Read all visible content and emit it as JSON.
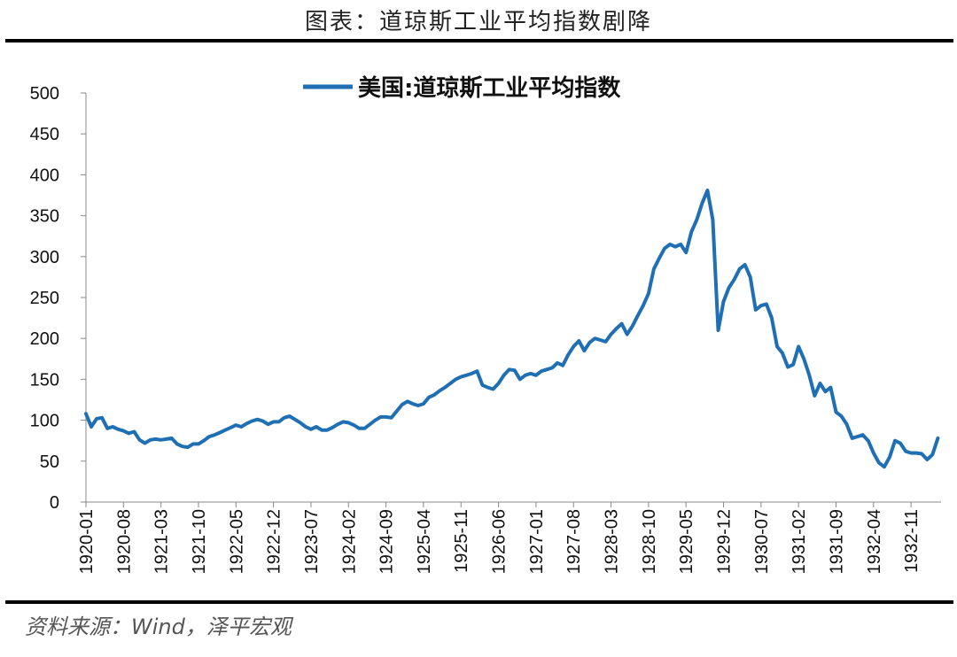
{
  "header": {
    "title": "图表：道琼斯工业平均指数剧降"
  },
  "footer": {
    "source": "资料来源：Wind，泽平宏观"
  },
  "chart_data": {
    "type": "line",
    "title": "",
    "xlabel": "",
    "ylabel": "",
    "ylim": [
      0,
      500
    ],
    "yticks": [
      0,
      50,
      100,
      150,
      200,
      250,
      300,
      350,
      400,
      450,
      500
    ],
    "xticks": [
      "1920-01",
      "1920-08",
      "1921-03",
      "1921-10",
      "1922-05",
      "1922-12",
      "1923-07",
      "1924-02",
      "1924-09",
      "1925-04",
      "1925-11",
      "1926-06",
      "1927-01",
      "1927-08",
      "1928-03",
      "1928-10",
      "1929-05",
      "1929-12",
      "1930-07",
      "1931-02",
      "1931-09",
      "1932-04",
      "1932-11"
    ],
    "grid": false,
    "legend_position": "top",
    "series": [
      {
        "name": "美国:道琼斯工业平均指数",
        "color": "#1f6fb4",
        "points": [
          [
            "1920-01",
            108
          ],
          [
            "1920-02",
            92
          ],
          [
            "1920-03",
            102
          ],
          [
            "1920-04",
            103
          ],
          [
            "1920-05",
            90
          ],
          [
            "1920-06",
            92
          ],
          [
            "1920-07",
            89
          ],
          [
            "1920-08",
            87
          ],
          [
            "1920-09",
            84
          ],
          [
            "1920-10",
            86
          ],
          [
            "1920-11",
            76
          ],
          [
            "1920-12",
            72
          ],
          [
            "1921-01",
            76
          ],
          [
            "1921-02",
            77
          ],
          [
            "1921-03",
            76
          ],
          [
            "1921-04",
            77
          ],
          [
            "1921-05",
            78
          ],
          [
            "1921-06",
            71
          ],
          [
            "1921-07",
            68
          ],
          [
            "1921-08",
            67
          ],
          [
            "1921-09",
            71
          ],
          [
            "1921-10",
            71
          ],
          [
            "1921-11",
            75
          ],
          [
            "1921-12",
            80
          ],
          [
            "1922-01",
            82
          ],
          [
            "1922-02",
            85
          ],
          [
            "1922-03",
            88
          ],
          [
            "1922-04",
            91
          ],
          [
            "1922-05",
            94
          ],
          [
            "1922-06",
            92
          ],
          [
            "1922-07",
            96
          ],
          [
            "1922-08",
            99
          ],
          [
            "1922-09",
            101
          ],
          [
            "1922-10",
            99
          ],
          [
            "1922-11",
            95
          ],
          [
            "1922-12",
            98
          ],
          [
            "1923-01",
            98
          ],
          [
            "1923-02",
            103
          ],
          [
            "1923-03",
            105
          ],
          [
            "1923-04",
            101
          ],
          [
            "1923-05",
            97
          ],
          [
            "1923-06",
            92
          ],
          [
            "1923-07",
            89
          ],
          [
            "1923-08",
            92
          ],
          [
            "1923-09",
            88
          ],
          [
            "1923-10",
            88
          ],
          [
            "1923-11",
            91
          ],
          [
            "1923-12",
            95
          ],
          [
            "1924-01",
            98
          ],
          [
            "1924-02",
            97
          ],
          [
            "1924-03",
            94
          ],
          [
            "1924-04",
            90
          ],
          [
            "1924-05",
            90
          ],
          [
            "1924-06",
            95
          ],
          [
            "1924-07",
            100
          ],
          [
            "1924-08",
            104
          ],
          [
            "1924-09",
            104
          ],
          [
            "1924-10",
            103
          ],
          [
            "1924-11",
            111
          ],
          [
            "1924-12",
            119
          ],
          [
            "1925-01",
            123
          ],
          [
            "1925-02",
            120
          ],
          [
            "1925-03",
            118
          ],
          [
            "1925-04",
            120
          ],
          [
            "1925-05",
            128
          ],
          [
            "1925-06",
            131
          ],
          [
            "1925-07",
            136
          ],
          [
            "1925-08",
            140
          ],
          [
            "1925-09",
            145
          ],
          [
            "1925-10",
            150
          ],
          [
            "1925-11",
            153
          ],
          [
            "1925-12",
            155
          ],
          [
            "1926-01",
            157
          ],
          [
            "1926-02",
            160
          ],
          [
            "1926-03",
            143
          ],
          [
            "1926-04",
            140
          ],
          [
            "1926-05",
            138
          ],
          [
            "1926-06",
            145
          ],
          [
            "1926-07",
            155
          ],
          [
            "1926-08",
            162
          ],
          [
            "1926-09",
            161
          ],
          [
            "1926-10",
            150
          ],
          [
            "1926-11",
            155
          ],
          [
            "1926-12",
            157
          ],
          [
            "1927-01",
            155
          ],
          [
            "1927-02",
            160
          ],
          [
            "1927-03",
            162
          ],
          [
            "1927-04",
            164
          ],
          [
            "1927-05",
            170
          ],
          [
            "1927-06",
            167
          ],
          [
            "1927-07",
            180
          ],
          [
            "1927-08",
            190
          ],
          [
            "1927-09",
            197
          ],
          [
            "1927-10",
            185
          ],
          [
            "1927-11",
            195
          ],
          [
            "1927-12",
            200
          ],
          [
            "1928-01",
            198
          ],
          [
            "1928-02",
            196
          ],
          [
            "1928-03",
            205
          ],
          [
            "1928-04",
            212
          ],
          [
            "1928-05",
            218
          ],
          [
            "1928-06",
            205
          ],
          [
            "1928-07",
            215
          ],
          [
            "1928-08",
            228
          ],
          [
            "1928-09",
            240
          ],
          [
            "1928-10",
            255
          ],
          [
            "1928-11",
            285
          ],
          [
            "1928-12",
            298
          ],
          [
            "1929-01",
            310
          ],
          [
            "1929-02",
            315
          ],
          [
            "1929-03",
            312
          ],
          [
            "1929-04",
            315
          ],
          [
            "1929-05",
            305
          ],
          [
            "1929-06",
            330
          ],
          [
            "1929-07",
            345
          ],
          [
            "1929-08",
            365
          ],
          [
            "1929-09",
            381
          ],
          [
            "1929-10",
            345
          ],
          [
            "1929-11",
            210
          ],
          [
            "1929-12",
            245
          ],
          [
            "1930-01",
            262
          ],
          [
            "1930-02",
            272
          ],
          [
            "1930-03",
            285
          ],
          [
            "1930-04",
            290
          ],
          [
            "1930-05",
            275
          ],
          [
            "1930-06",
            235
          ],
          [
            "1930-07",
            240
          ],
          [
            "1930-08",
            242
          ],
          [
            "1930-09",
            225
          ],
          [
            "1930-10",
            190
          ],
          [
            "1930-11",
            182
          ],
          [
            "1930-12",
            165
          ],
          [
            "1931-01",
            168
          ],
          [
            "1931-02",
            190
          ],
          [
            "1931-03",
            175
          ],
          [
            "1931-04",
            155
          ],
          [
            "1931-05",
            130
          ],
          [
            "1931-06",
            145
          ],
          [
            "1931-07",
            135
          ],
          [
            "1931-08",
            140
          ],
          [
            "1931-09",
            110
          ],
          [
            "1931-10",
            105
          ],
          [
            "1931-11",
            95
          ],
          [
            "1931-12",
            78
          ],
          [
            "1932-01",
            80
          ],
          [
            "1932-02",
            82
          ],
          [
            "1932-03",
            75
          ],
          [
            "1932-04",
            60
          ],
          [
            "1932-05",
            48
          ],
          [
            "1932-06",
            43
          ],
          [
            "1932-07",
            55
          ],
          [
            "1932-08",
            75
          ],
          [
            "1932-09",
            72
          ],
          [
            "1932-10",
            62
          ],
          [
            "1932-11",
            60
          ],
          [
            "1932-12",
            60
          ],
          [
            "1933-01",
            59
          ],
          [
            "1933-02",
            52
          ],
          [
            "1933-03",
            58
          ],
          [
            "1933-04",
            78
          ]
        ]
      }
    ]
  }
}
